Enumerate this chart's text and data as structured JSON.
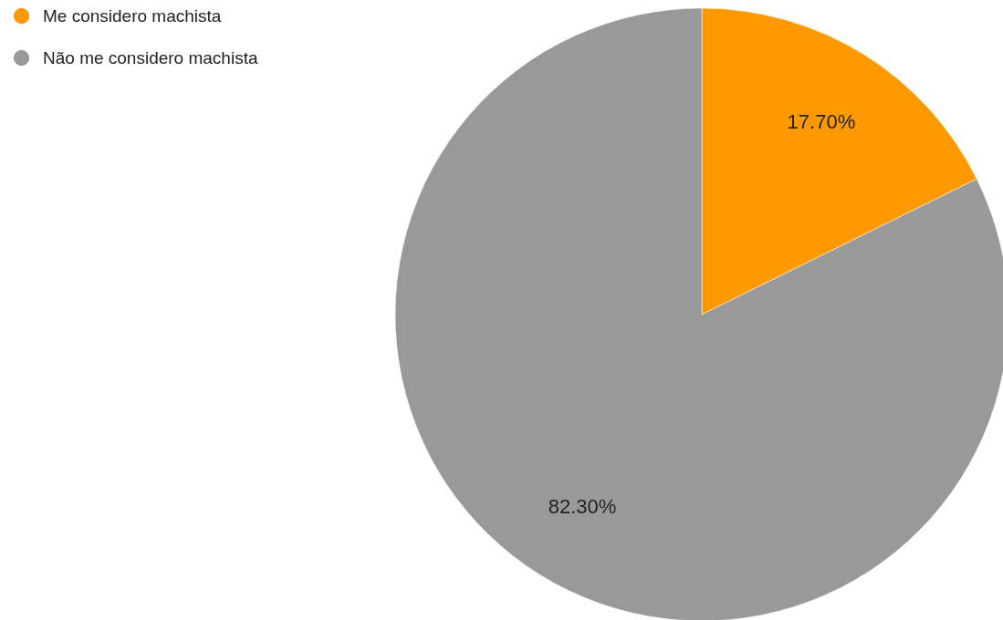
{
  "chart_data": {
    "type": "pie",
    "categories": [
      "Me considero machista",
      "Não me considero machista"
    ],
    "values": [
      17.7,
      82.3
    ],
    "colors": [
      "#ff9900",
      "#999999"
    ],
    "value_labels": [
      "17.70%",
      "82.30%"
    ],
    "legend": "top left"
  }
}
